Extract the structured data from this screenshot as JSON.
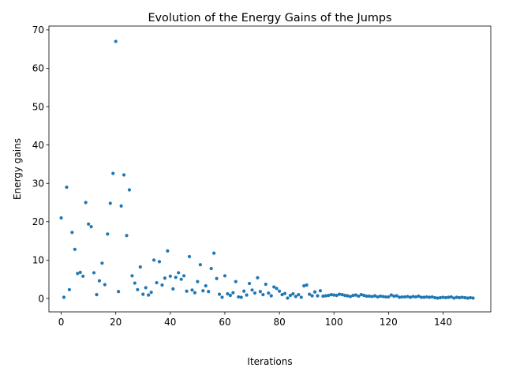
{
  "chart_data": {
    "type": "scatter",
    "title": "Evolution of the Energy Gains of the Jumps",
    "xlabel": "Iterations",
    "ylabel": "Energy gains",
    "xlim": [
      -4.5,
      157.5
    ],
    "ylim": [
      -3.5,
      71.0
    ],
    "xticks": [
      0,
      20,
      40,
      60,
      80,
      100,
      120,
      140
    ],
    "yticks": [
      0,
      10,
      20,
      30,
      40,
      50,
      60,
      70
    ],
    "grid": false,
    "series": [
      {
        "color": "#1f77b4",
        "x": [
          0,
          1,
          2,
          3,
          4,
          5,
          6,
          7,
          8,
          9,
          10,
          11,
          12,
          13,
          14,
          15,
          16,
          17,
          18,
          19,
          20,
          21,
          22,
          23,
          24,
          25,
          26,
          27,
          28,
          29,
          30,
          31,
          32,
          33,
          34,
          35,
          36,
          37,
          38,
          39,
          40,
          41,
          42,
          43,
          44,
          45,
          46,
          47,
          48,
          49,
          50,
          51,
          52,
          53,
          54,
          55,
          56,
          57,
          58,
          59,
          60,
          61,
          62,
          63,
          64,
          65,
          66,
          67,
          68,
          69,
          70,
          71,
          72,
          73,
          74,
          75,
          76,
          77,
          78,
          79,
          80,
          81,
          82,
          83,
          84,
          85,
          86,
          87,
          88,
          89,
          90,
          91,
          92,
          93,
          94,
          95,
          96,
          97,
          98,
          99,
          100,
          101,
          102,
          103,
          104,
          105,
          106,
          107,
          108,
          109,
          110,
          111,
          112,
          113,
          114,
          115,
          116,
          117,
          118,
          119,
          120,
          121,
          122,
          123,
          124,
          125,
          126,
          127,
          128,
          129,
          130,
          131,
          132,
          133,
          134,
          135,
          136,
          137,
          138,
          139,
          140,
          141,
          142,
          143,
          144,
          145,
          146,
          147,
          148,
          149,
          150,
          151
        ],
        "y": [
          21.0,
          0.3,
          29.0,
          2.3,
          17.2,
          12.8,
          6.5,
          6.8,
          5.8,
          25.0,
          19.4,
          18.7,
          6.7,
          1.0,
          4.6,
          9.2,
          3.6,
          16.8,
          24.8,
          32.6,
          67.0,
          1.8,
          24.1,
          32.2,
          16.4,
          28.3,
          5.9,
          4.0,
          2.3,
          8.2,
          1.1,
          2.8,
          0.9,
          1.6,
          10.0,
          4.1,
          9.6,
          3.5,
          5.3,
          12.4,
          5.8,
          2.5,
          5.5,
          6.7,
          5.0,
          5.9,
          1.9,
          10.9,
          2.2,
          1.5,
          4.4,
          8.8,
          2.0,
          3.3,
          1.8,
          7.8,
          11.8,
          5.2,
          1.1,
          0.3,
          5.9,
          1.2,
          0.8,
          1.5,
          4.4,
          0.4,
          0.3,
          1.9,
          0.9,
          3.9,
          2.2,
          1.4,
          5.4,
          1.8,
          1.0,
          3.7,
          1.4,
          0.7,
          3.0,
          2.6,
          1.9,
          1.0,
          1.3,
          0.1,
          0.8,
          1.2,
          0.5,
          1.0,
          0.3,
          3.3,
          3.5,
          1.1,
          0.7,
          1.7,
          0.7,
          2.0,
          0.6,
          0.7,
          0.8,
          1.0,
          0.9,
          0.8,
          1.1,
          1.0,
          0.8,
          0.7,
          0.5,
          0.8,
          0.9,
          0.6,
          1.0,
          0.8,
          0.6,
          0.6,
          0.5,
          0.7,
          0.4,
          0.6,
          0.5,
          0.4,
          0.4,
          0.9,
          0.6,
          0.7,
          0.3,
          0.4,
          0.4,
          0.5,
          0.3,
          0.5,
          0.4,
          0.6,
          0.3,
          0.3,
          0.4,
          0.3,
          0.4,
          0.2,
          0.1,
          0.2,
          0.3,
          0.2,
          0.3,
          0.4,
          0.1,
          0.3,
          0.2,
          0.3,
          0.2,
          0.1,
          0.2,
          0.1
        ]
      }
    ]
  }
}
